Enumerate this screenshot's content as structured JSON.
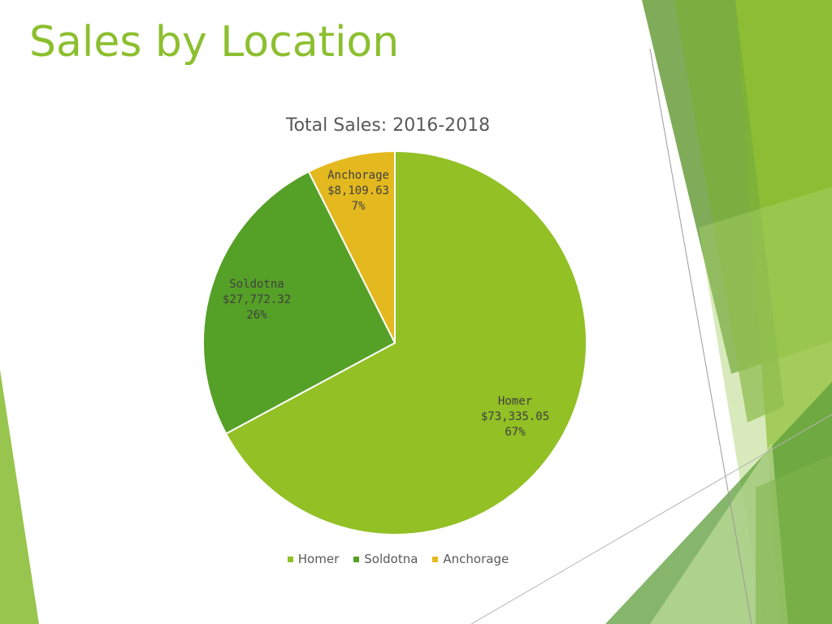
{
  "slide": {
    "title": "Sales by Location"
  },
  "chart_data": {
    "type": "pie",
    "title": "Total Sales: 2016-2018",
    "legend_position": "bottom",
    "slices": [
      {
        "label": "Homer",
        "value": 73335.05,
        "value_text": "$73,335.05",
        "percent_text": "67%",
        "color": "#92c025"
      },
      {
        "label": "Soldotna",
        "value": 27772.32,
        "value_text": "$27,772.32",
        "percent_text": "26%",
        "color": "#55a026"
      },
      {
        "label": "Anchorage",
        "value": 8109.63,
        "value_text": "$8,109.63",
        "percent_text": "7%",
        "color": "#e4b91f"
      }
    ]
  }
}
